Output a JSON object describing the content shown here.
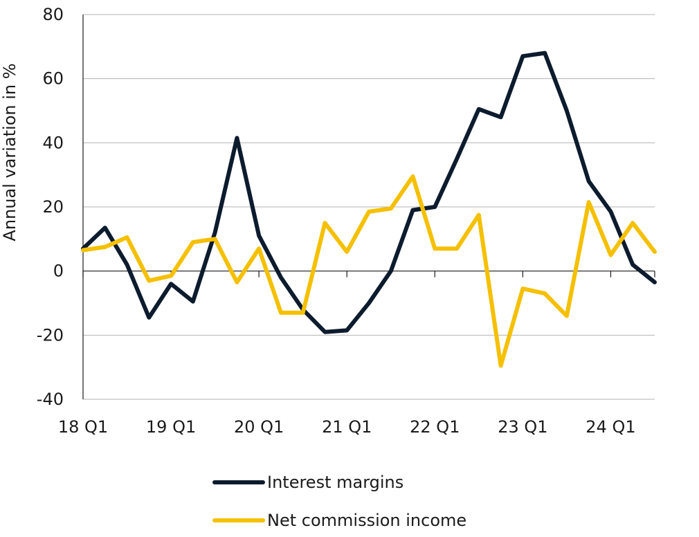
{
  "chart_data": {
    "type": "line",
    "ylabel": "Annual variation in %",
    "ylim": [
      -40,
      80
    ],
    "yticks": [
      80,
      60,
      40,
      20,
      0,
      -20,
      -40
    ],
    "ytick_labels": [
      "80",
      "60",
      "40",
      "20",
      "0",
      "-20",
      "-40"
    ],
    "categories": [
      "18 Q1",
      "18 Q2",
      "18 Q3",
      "18 Q4",
      "19 Q1",
      "19 Q2",
      "19 Q3",
      "19 Q4",
      "20 Q1",
      "20 Q2",
      "20 Q3",
      "20 Q4",
      "21 Q1",
      "21 Q2",
      "21 Q3",
      "21 Q4",
      "22 Q1",
      "22 Q2",
      "22 Q3",
      "22 Q4",
      "23 Q1",
      "23 Q2",
      "23 Q3",
      "23 Q4",
      "24 Q1",
      "24 Q2",
      "24 Q3"
    ],
    "x_tick_labels": [
      "18 Q1",
      "19 Q1",
      "20 Q1",
      "21 Q1",
      "22 Q1",
      "23 Q1",
      "24 Q1"
    ],
    "grid": true,
    "legend_position": "bottom-center",
    "series": [
      {
        "name": "Interest margins",
        "color": "#0d1b2e",
        "values": [
          7,
          13.5,
          2,
          -14.5,
          -4,
          -9.5,
          12,
          41.5,
          11,
          -2,
          -12,
          -19,
          -18.5,
          -10,
          0,
          19,
          20,
          35,
          50.5,
          48,
          67,
          68,
          50,
          28,
          18.5,
          2,
          -3.5
        ]
      },
      {
        "name": "Net commission income",
        "color": "#f5c000",
        "values": [
          6.5,
          7.5,
          10.5,
          -3,
          -1.5,
          9,
          10,
          -3.5,
          7,
          -13,
          -13,
          15,
          6,
          18.5,
          19.5,
          29.5,
          7,
          7,
          17.5,
          -29.5,
          -5.5,
          -7,
          -14,
          21.5,
          5,
          15,
          6
        ]
      }
    ]
  }
}
